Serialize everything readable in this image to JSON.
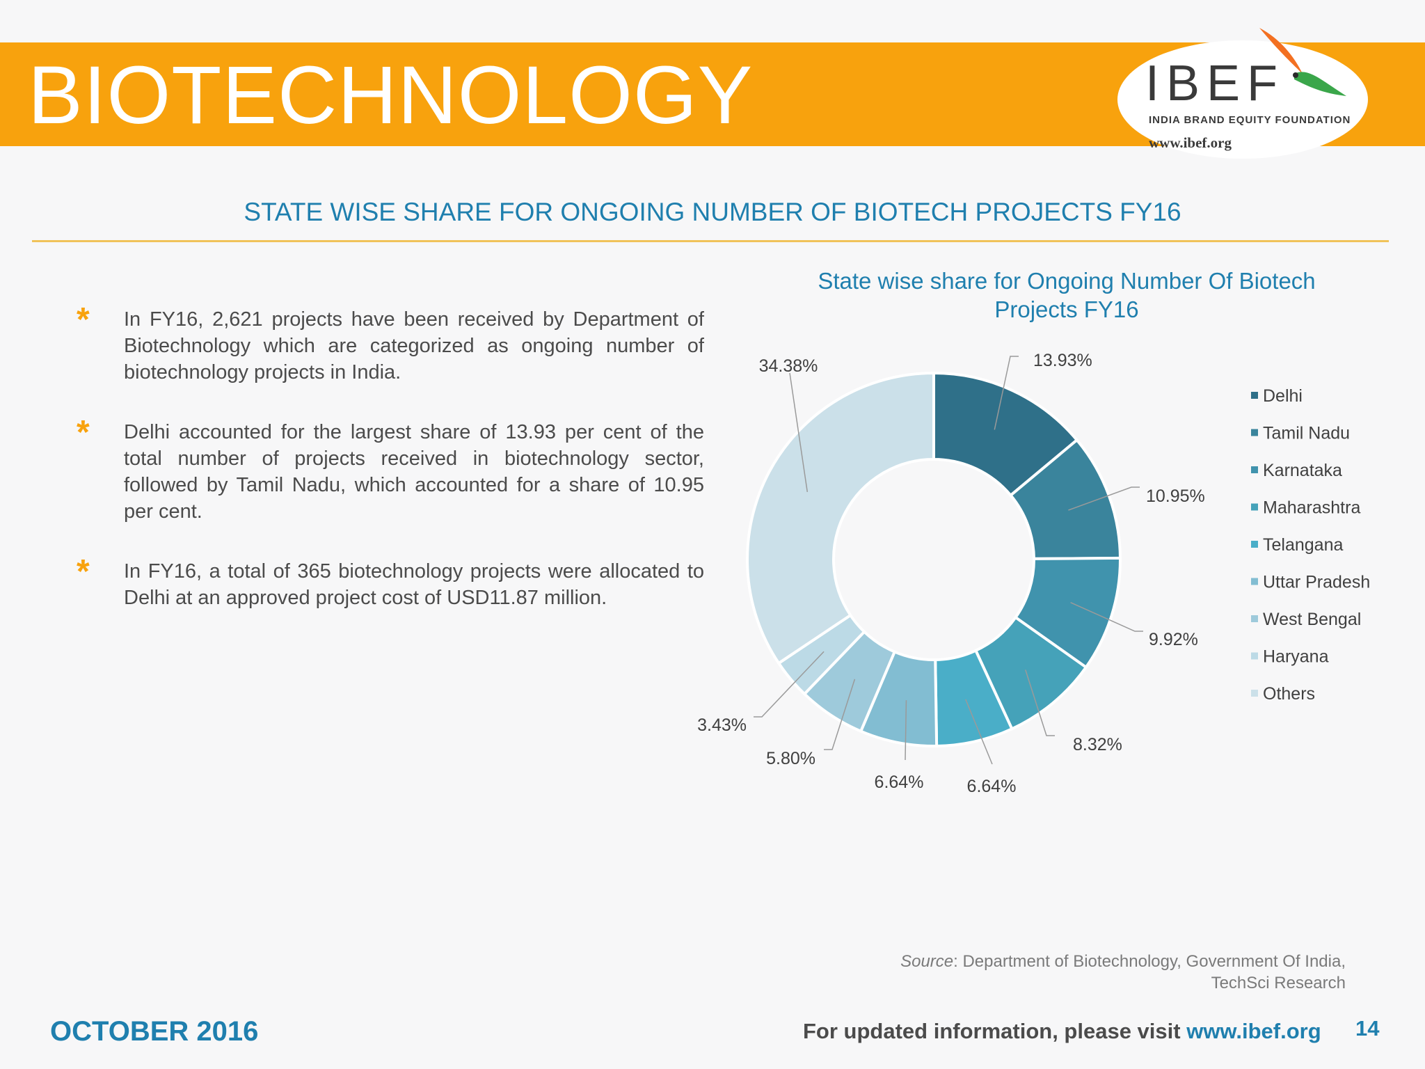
{
  "header": {
    "title": "BIOTECHNOLOGY",
    "logo": {
      "text": "IBEF",
      "tagline": "INDIA BRAND EQUITY FOUNDATION",
      "url": "www.ibef.org"
    }
  },
  "section": {
    "heading": "STATE WISE SHARE FOR ONGOING NUMBER OF BIOTECH PROJECTS FY16"
  },
  "bullets": [
    {
      "marker": "*",
      "text": "In FY16, 2,621 projects have been received by Department of Biotechnology which are categorized as ongoing number of biotechnology projects in India."
    },
    {
      "marker": "*",
      "text": "Delhi accounted for the largest share of 13.93 per cent of the total number of projects received in biotechnology sector, followed by Tamil Nadu, which accounted for a share of 10.95 per cent."
    },
    {
      "marker": "*",
      "text": "In FY16, a total of 365 biotechnology projects were allocated to Delhi at an approved project cost of USD11.87 million."
    }
  ],
  "chart_data": {
    "type": "pie",
    "donut": true,
    "title": "State wise share for Ongoing Number Of Biotech Projects FY16",
    "legend_position": "right",
    "categories": [
      "Delhi",
      "Tamil Nadu",
      "Karnataka",
      "Maharashtra",
      "Telangana",
      "Uttar Pradesh",
      "West Bengal",
      "Haryana",
      "Others"
    ],
    "values": [
      13.93,
      10.95,
      9.92,
      8.32,
      6.64,
      6.64,
      5.8,
      3.43,
      34.38
    ],
    "labels": [
      "13.93%",
      "10.95%",
      "9.92%",
      "8.32%",
      "6.64%",
      "6.64%",
      "5.80%",
      "3.43%",
      "34.38%"
    ],
    "colors": [
      "#2f7089",
      "#3a849c",
      "#4093ad",
      "#45a2b9",
      "#4aaec8",
      "#82bdd2",
      "#9ecadb",
      "#bcdae6",
      "#cbe0e9"
    ]
  },
  "source": {
    "label": "Source",
    "text": ": Department of Biotechnology, Government Of India, TechSci Research"
  },
  "footer": {
    "date": "OCTOBER 2016",
    "visit_text": "For updated information, please visit ",
    "visit_link": "www.ibef.org",
    "page_number": "14"
  }
}
